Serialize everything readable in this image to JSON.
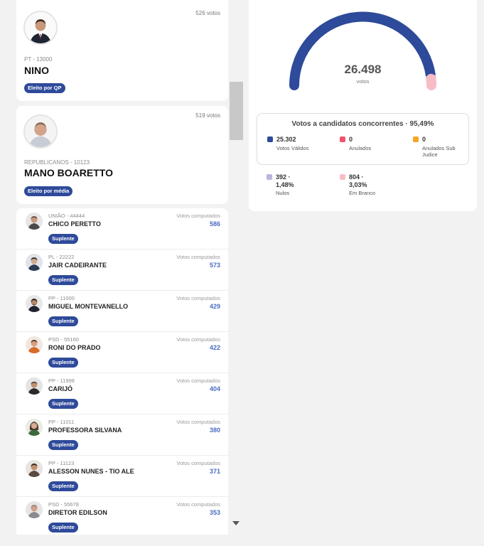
{
  "top_cards": [
    {
      "votes": "526 votos",
      "party": "PT - 13000",
      "name": "NINO",
      "badge": "Eleito por QP"
    },
    {
      "votes": "519 votos",
      "party": "REPUBLICANOS - 10123",
      "name": "MANO BOARETTO",
      "badge": "Eleito por média"
    }
  ],
  "list": {
    "votes_label": "Votos computados",
    "badge": "Suplente",
    "rows": [
      {
        "party": "UNIÃO - 44444",
        "name": "CHICO PERETTO",
        "votes": "586"
      },
      {
        "party": "PL - 22222",
        "name": "JAIR CADEIRANTE",
        "votes": "573"
      },
      {
        "party": "PP - 11000",
        "name": "MIGUEL MONTEVANELLO",
        "votes": "429"
      },
      {
        "party": "PSD - 55160",
        "name": "RONI DO PRADO",
        "votes": "422"
      },
      {
        "party": "PP - 11999",
        "name": "CARIJÓ",
        "votes": "404"
      },
      {
        "party": "PP - 11011",
        "name": "PROFESSORA SILVANA",
        "votes": "380"
      },
      {
        "party": "PP - 11123",
        "name": "ALESSON NUNES - TIO ALE",
        "votes": "371"
      },
      {
        "party": "PSD - 55678",
        "name": "DIRETOR EDILSON",
        "votes": "353"
      }
    ]
  },
  "summary": {
    "total": "26.498",
    "total_label": "votos",
    "gauge": {
      "valid_fraction": 0.9549,
      "null_fraction": 0.0148,
      "blank_fraction": 0.0303
    },
    "box_title": "Votos a candidatos concorrentes · 95,49%",
    "stats": {
      "validos": {
        "value": "25.302",
        "label": "Votos Válidos"
      },
      "anulados": {
        "value": "0",
        "label": "Anulados"
      },
      "sub_judice": {
        "value": "0",
        "label1": "Anulados Sub",
        "label2": "Judice"
      },
      "nulos": {
        "value": "392 ·",
        "pct": "1,48%",
        "label": "Nulos"
      },
      "branco": {
        "value": "804 ·",
        "pct": "3,03%",
        "label": "Em Branco"
      }
    }
  },
  "colors": {
    "badge": "#2e4a9a",
    "validos": "#2e4a9a",
    "anulados": "#f0546a",
    "sub_judice": "#f5a623",
    "nulos": "#b8b6dc",
    "branco": "#f8bcc6"
  }
}
